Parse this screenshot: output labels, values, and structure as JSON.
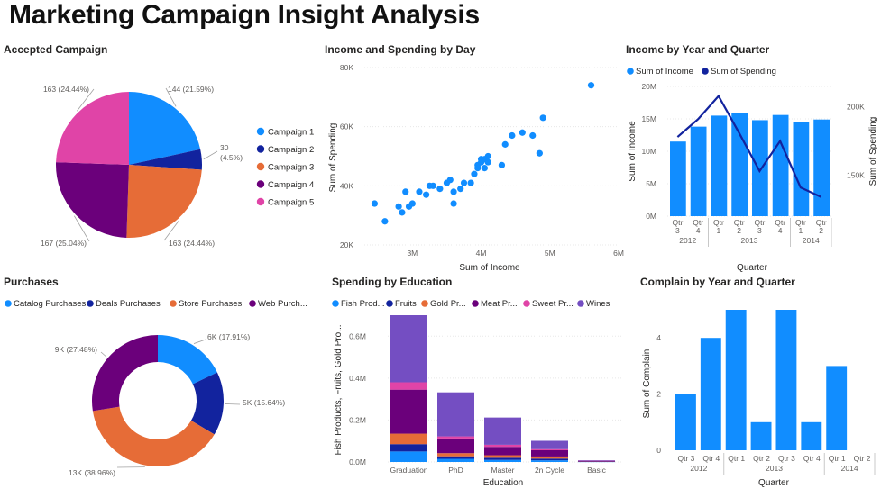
{
  "title": "Marketing Campaign Insight Analysis",
  "colors": {
    "blue": "#118DFF",
    "navy": "#12239E",
    "orange": "#E66C37",
    "purple": "#6B007B",
    "pink": "#E044A7",
    "violet": "#744EC2"
  },
  "panels": {
    "accepted": "Accepted Campaign",
    "scatter": "Income and Spending by Day",
    "year_quarter": "Income by Year and Quarter",
    "purchases": "Purchases",
    "education": "Spending by Education",
    "complain": "Complain by Year and Quarter"
  },
  "chart_data": [
    {
      "id": "accepted",
      "type": "pie",
      "title": "Accepted Campaign",
      "categories": [
        "Campaign 1",
        "Campaign 2",
        "Campaign 3",
        "Campaign 4",
        "Campaign 5"
      ],
      "values": [
        144,
        30,
        163,
        167,
        163
      ],
      "labels": [
        "144 (21.59%)",
        "30 (4.5%)",
        "163 (24.44%)",
        "167 (25.04%)",
        "163 (24.44%)"
      ],
      "colors": [
        "#118DFF",
        "#12239E",
        "#E66C37",
        "#6B007B",
        "#E044A7"
      ],
      "legend": "right"
    },
    {
      "id": "scatter",
      "type": "scatter",
      "title": "Income and Spending by Day",
      "xlabel": "Sum of Income",
      "ylabel": "Sum of Spending",
      "xticks": [
        "3M",
        "4M",
        "5M",
        "6M"
      ],
      "xlim": [
        2.3,
        6.0
      ],
      "yticks": [
        "20K",
        "40K",
        "60K",
        "80K"
      ],
      "ylim": [
        20,
        80
      ],
      "points": [
        [
          2.45,
          34
        ],
        [
          2.6,
          28
        ],
        [
          2.8,
          33
        ],
        [
          2.85,
          31
        ],
        [
          2.9,
          38
        ],
        [
          2.95,
          33
        ],
        [
          3.0,
          34
        ],
        [
          3.1,
          38
        ],
        [
          3.2,
          37
        ],
        [
          3.25,
          40
        ],
        [
          3.3,
          40
        ],
        [
          3.4,
          39
        ],
        [
          3.5,
          41
        ],
        [
          3.55,
          42
        ],
        [
          3.6,
          38
        ],
        [
          3.6,
          34
        ],
        [
          3.7,
          39
        ],
        [
          3.75,
          41
        ],
        [
          3.85,
          41
        ],
        [
          3.9,
          44
        ],
        [
          3.95,
          47
        ],
        [
          3.95,
          46
        ],
        [
          4.0,
          48
        ],
        [
          4.0,
          49
        ],
        [
          4.05,
          46
        ],
        [
          4.05,
          49
        ],
        [
          4.1,
          50
        ],
        [
          4.1,
          48
        ],
        [
          4.3,
          47
        ],
        [
          4.35,
          54
        ],
        [
          4.45,
          57
        ],
        [
          4.6,
          58
        ],
        [
          4.75,
          57
        ],
        [
          4.85,
          51
        ],
        [
          4.9,
          63
        ],
        [
          5.6,
          74
        ]
      ],
      "color": "#118DFF"
    },
    {
      "id": "year_quarter",
      "type": "bar",
      "title": "Income by Year and Quarter",
      "xlabel": "Quarter",
      "ylabel": "Sum of Income",
      "y2label": "Sum of Spending",
      "categories": [
        "Qtr 3",
        "Qtr 4",
        "Qtr 1",
        "Qtr 2",
        "Qtr 3",
        "Qtr 4",
        "Qtr 1",
        "Qtr 2"
      ],
      "years": [
        {
          "label": "2012",
          "span": [
            0,
            1
          ]
        },
        {
          "label": "2013",
          "span": [
            2,
            5
          ]
        },
        {
          "label": "2014",
          "span": [
            6,
            7
          ]
        }
      ],
      "series": [
        {
          "name": "Sum of Income",
          "type": "bar",
          "values": [
            11.5,
            13.8,
            15.5,
            15.9,
            14.8,
            15.6,
            14.5,
            14.9
          ],
          "color": "#118DFF"
        },
        {
          "name": "Sum of Spending",
          "type": "line",
          "values": [
            178,
            191,
            208,
            181,
            153,
            175,
            141,
            134
          ],
          "color": "#12239E"
        }
      ],
      "yticks": [
        "0M",
        "5M",
        "10M",
        "15M",
        "20M"
      ],
      "ylim": [
        0,
        20
      ],
      "y2ticks": [
        "150K",
        "200K"
      ],
      "y2lim": [
        120,
        215
      ],
      "legend": "top-left"
    },
    {
      "id": "purchases",
      "type": "pie",
      "title": "Purchases",
      "categories": [
        "Catalog Purchases",
        "Deals Purchases",
        "Store Purchases",
        "Web Purchases"
      ],
      "legend_labels": [
        "Catalog Purchases",
        "Deals Purchases",
        "Store Purchases",
        "Web Purch..."
      ],
      "values": [
        17.91,
        15.64,
        38.96,
        27.48
      ],
      "labels": [
        "6K (17.91%)",
        "5K (15.64%)",
        "13K (38.96%)",
        "9K (27.48%)"
      ],
      "colors": [
        "#118DFF",
        "#12239E",
        "#E66C37",
        "#6B007B"
      ],
      "legend": "top"
    },
    {
      "id": "education",
      "type": "bar",
      "stacked": true,
      "title": "Spending by Education",
      "xlabel": "Education",
      "ylabel": "Fish Products, Fruits, Gold Pro...",
      "categories": [
        "Graduation",
        "PhD",
        "Master",
        "2n Cycle",
        "Basic"
      ],
      "series": [
        {
          "name": "Fish Prod...",
          "values": [
            0.05,
            0.015,
            0.01,
            0.008,
            0.002
          ],
          "color": "#118DFF"
        },
        {
          "name": "Fruits",
          "values": [
            0.035,
            0.012,
            0.01,
            0.008,
            0.001
          ],
          "color": "#12239E"
        },
        {
          "name": "Gold Pr...",
          "values": [
            0.05,
            0.015,
            0.012,
            0.01,
            0.001
          ],
          "color": "#E66C37"
        },
        {
          "name": "Meat Pr...",
          "values": [
            0.21,
            0.07,
            0.04,
            0.03,
            0.001
          ],
          "color": "#6B007B"
        },
        {
          "name": "Sweet Pr...",
          "values": [
            0.035,
            0.01,
            0.01,
            0.005,
            0.001
          ],
          "color": "#E044A7"
        },
        {
          "name": "Wines",
          "values": [
            0.32,
            0.21,
            0.13,
            0.04,
            0.002
          ],
          "color": "#744EC2"
        }
      ],
      "yticks": [
        "0.0M",
        "0.2M",
        "0.4M",
        "0.6M"
      ],
      "ylim": [
        0,
        0.7
      ],
      "legend": "top"
    },
    {
      "id": "complain",
      "type": "bar",
      "title": "Complain by Year and Quarter",
      "xlabel": "Quarter",
      "ylabel": "Sum of Complain",
      "categories": [
        "Qtr 3",
        "Qtr 4",
        "Qtr 1",
        "Qtr 2",
        "Qtr 3",
        "Qtr 4",
        "Qtr 1",
        "Qtr 2"
      ],
      "years": [
        {
          "label": "2012",
          "span": [
            0,
            1
          ]
        },
        {
          "label": "2013",
          "span": [
            2,
            5
          ]
        },
        {
          "label": "2014",
          "span": [
            6,
            7
          ]
        }
      ],
      "values": [
        2,
        4,
        5,
        1,
        5,
        1,
        3,
        0
      ],
      "yticks": [
        "0",
        "2",
        "4"
      ],
      "ylim": [
        0,
        5
      ],
      "color": "#118DFF"
    }
  ]
}
